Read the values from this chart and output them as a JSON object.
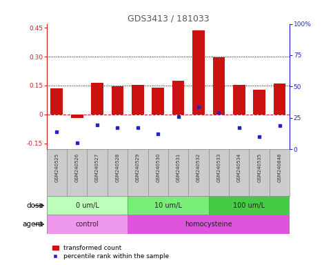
{
  "title": "GDS3413 / 181033",
  "samples": [
    "GSM240525",
    "GSM240526",
    "GSM240527",
    "GSM240528",
    "GSM240529",
    "GSM240530",
    "GSM240531",
    "GSM240532",
    "GSM240533",
    "GSM240534",
    "GSM240535",
    "GSM240848"
  ],
  "red_values": [
    0.135,
    -0.02,
    0.165,
    0.148,
    0.153,
    0.14,
    0.175,
    0.435,
    0.295,
    0.152,
    0.128,
    0.162
  ],
  "blue_values": [
    -0.09,
    -0.148,
    -0.055,
    -0.07,
    -0.068,
    -0.1,
    -0.01,
    0.04,
    0.01,
    -0.068,
    -0.115,
    -0.058
  ],
  "ylim_left": [
    -0.18,
    0.47
  ],
  "yticks_left": [
    -0.15,
    0.0,
    0.15,
    0.3,
    0.45
  ],
  "ytick_labels_left": [
    "-0.15",
    "0",
    "0.15",
    "0.30",
    "0.45"
  ],
  "ylim_right": [
    0,
    100
  ],
  "yticks_right": [
    0,
    25,
    50,
    75,
    100
  ],
  "yticklabels_right": [
    "0",
    "25",
    "50",
    "75",
    "100%"
  ],
  "hlines": [
    0.15,
    0.3
  ],
  "dose_groups": [
    {
      "label": "0 um/L",
      "start": 0,
      "end": 4,
      "color": "#bbffbb"
    },
    {
      "label": "10 um/L",
      "start": 4,
      "end": 8,
      "color": "#77ee77"
    },
    {
      "label": "100 um/L",
      "start": 8,
      "end": 12,
      "color": "#44cc44"
    }
  ],
  "agent_groups": [
    {
      "label": "control",
      "start": 0,
      "end": 4,
      "color": "#ee99ee"
    },
    {
      "label": "homocysteine",
      "start": 4,
      "end": 12,
      "color": "#dd55dd"
    }
  ],
  "red_color": "#cc1111",
  "blue_color": "#2222cc",
  "dashed_line_color": "#cc2222",
  "legend_entries": [
    "transformed count",
    "percentile rank within the sample"
  ],
  "dose_label": "dose",
  "agent_label": "agent",
  "title_color": "#555555",
  "left_axis_color": "#cc2222",
  "right_axis_color": "#2222cc",
  "bar_width": 0.6,
  "sample_label_bg": "#cccccc"
}
